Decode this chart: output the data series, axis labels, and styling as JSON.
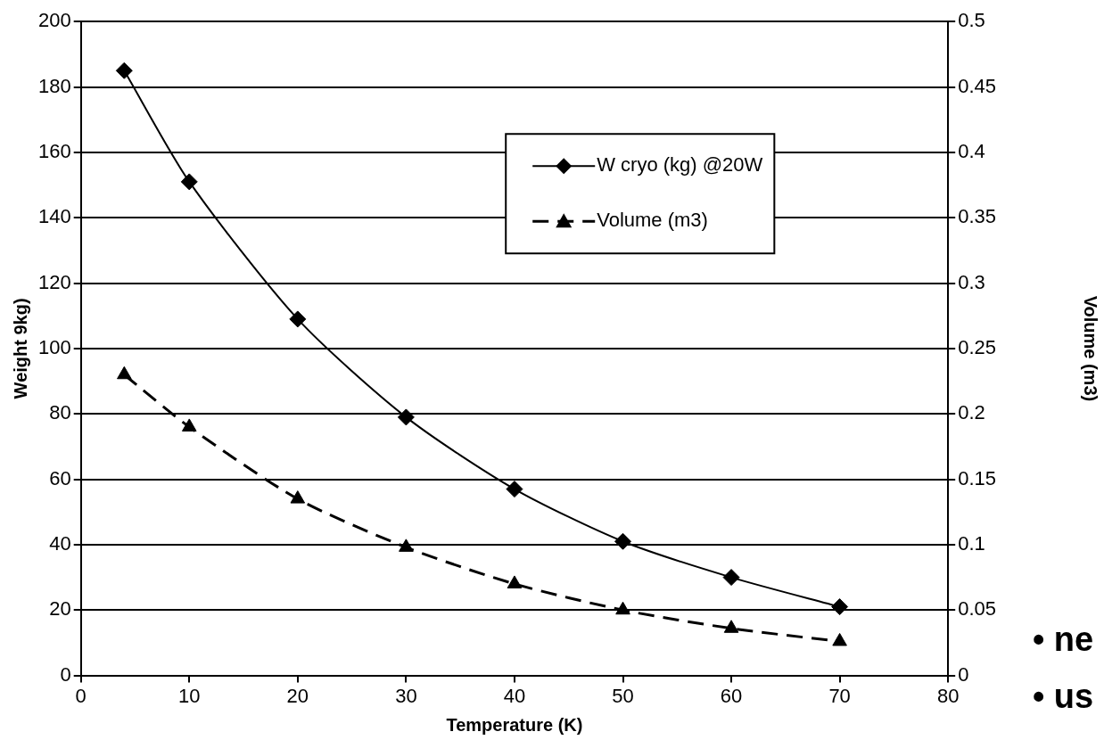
{
  "chart_data": {
    "type": "line",
    "xlabel": "Temperature (K)",
    "ylabel": "Weight 9kg)",
    "y2label": "Volume (m3)",
    "x": [
      4,
      10,
      20,
      30,
      40,
      50,
      60,
      70
    ],
    "series": [
      {
        "name": "W cryo (kg) @20W",
        "color": "#000000",
        "marker": "diamond",
        "line_style": "solid",
        "values": [
          185,
          151,
          109,
          79,
          57,
          41,
          30,
          21
        ]
      },
      {
        "name": "Volume (m3)",
        "color": "#000000",
        "marker": "triangle",
        "line_style": "dashed",
        "axis": "y2",
        "values": [
          0.23,
          0.19,
          0.135,
          0.098,
          0.07,
          0.05,
          0.036,
          0.026
        ]
      }
    ],
    "xlim": [
      0,
      80
    ],
    "xticks": [
      0,
      10,
      20,
      30,
      40,
      50,
      60,
      70,
      80
    ],
    "ylim": [
      0,
      200
    ],
    "yticks": [
      0,
      20,
      40,
      60,
      80,
      100,
      120,
      140,
      160,
      180,
      200
    ],
    "y2lim": [
      0,
      0.5
    ],
    "y2ticks": [
      0,
      0.05,
      0.1,
      0.15,
      0.2,
      0.25,
      0.3,
      0.35,
      0.4,
      0.45,
      0.5
    ],
    "grid": "y",
    "legend": "top right",
    "annotations": [
      "• ne",
      "• us"
    ]
  }
}
